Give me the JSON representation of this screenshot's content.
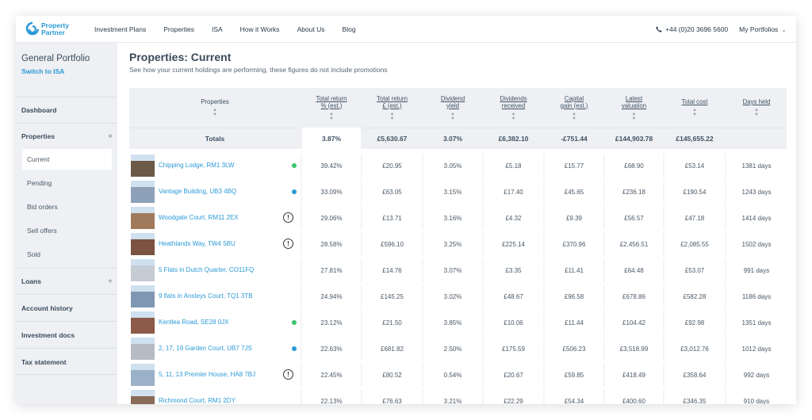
{
  "brand": {
    "line1": "Property",
    "line2": "Partner",
    "color": "#2c9ad6"
  },
  "nav": {
    "items": [
      "Investment Plans",
      "Properties",
      "ISA",
      "How it Works",
      "About Us",
      "Blog"
    ],
    "phone": "+44 (0)20 3696 5600",
    "portfolios": "My Portfolios"
  },
  "sidebar": {
    "title": "General Portfolio",
    "switch": "Switch to ISA",
    "dashboard": "Dashboard",
    "properties": "Properties",
    "properties_toggle": "×",
    "sub": [
      "Current",
      "Pending",
      "Bid orders",
      "Sell offers",
      "Sold"
    ],
    "loans": "Loans",
    "loans_toggle": "+",
    "account_history": "Account history",
    "investment_docs": "Investment docs",
    "tax_statement": "Tax statement"
  },
  "page": {
    "title": "Properties: Current",
    "subtitle": "See how your current holdings are performing, these figures do not include promotions"
  },
  "table": {
    "headers": [
      {
        "l1": "Properties",
        "l2": "",
        "u": false
      },
      {
        "l1": "Total return",
        "l2": "% (est.)",
        "u": true
      },
      {
        "l1": "Total return",
        "l2": "£ (est.)",
        "u": true
      },
      {
        "l1": "Dividend",
        "l2": "yield",
        "u": true
      },
      {
        "l1": "Dividends",
        "l2": "received",
        "u": true
      },
      {
        "l1": "Capital",
        "l2": "gain (est.)",
        "u": true
      },
      {
        "l1": "Latest",
        "l2": "valuation",
        "u": true
      },
      {
        "l1": "Total cost",
        "l2": "",
        "u": true
      },
      {
        "l1": "Days held",
        "l2": "",
        "u": true
      }
    ],
    "sort_glyph": "▲\n▼",
    "totals": [
      "Totals",
      "3.87%",
      "£5,630.67",
      "3.07%",
      "£6,382.10",
      "-£751.44",
      "£144,903.78",
      "£145,655.22",
      ""
    ],
    "rows": [
      {
        "name": "Chipping Lodge, RM1 3LW",
        "status": "green",
        "vals": [
          "39.42%",
          "£20.95",
          "3.05%",
          "£5.18",
          "£15.77",
          "£68.90",
          "£53.14",
          "1381 days"
        ]
      },
      {
        "name": "Vantage Building, UB3 4BQ",
        "status": "blue",
        "vals": [
          "33.09%",
          "£63.05",
          "3.15%",
          "£17.40",
          "£45.65",
          "£236.18",
          "£190.54",
          "1243 days"
        ]
      },
      {
        "name": "Woodgate Court, RM11 2EX",
        "status": "warn",
        "vals": [
          "29.06%",
          "£13.71",
          "3.16%",
          "£4.32",
          "£9.39",
          "£56.57",
          "£47.18",
          "1414 days"
        ]
      },
      {
        "name": "Heathlands Way, TW4 5BU",
        "status": "warn",
        "vals": [
          "28.58%",
          "£596.10",
          "3.25%",
          "£225.14",
          "£370.96",
          "£2,456.51",
          "£2,085.55",
          "1502 days"
        ]
      },
      {
        "name": "5 Flats in Dutch Quarter, CO11FQ",
        "status": "",
        "vals": [
          "27.81%",
          "£14.76",
          "3.07%",
          "£3.35",
          "£11.41",
          "£64.48",
          "£53.07",
          "991 days"
        ]
      },
      {
        "name": "9 flats in Ansteys Court, TQ1 3TB",
        "status": "",
        "vals": [
          "24.94%",
          "£145.25",
          "3.02%",
          "£48.67",
          "£96.58",
          "£678.86",
          "£582.28",
          "1186 days"
        ]
      },
      {
        "name": "Kentlea Road, SE28 0JX",
        "status": "green",
        "vals": [
          "23.12%",
          "£21.50",
          "3.85%",
          "£10.06",
          "£11.44",
          "£104.42",
          "£92.98",
          "1351 days"
        ]
      },
      {
        "name": "2, 17, 19 Garden Court, UB7 7JS",
        "status": "blue",
        "vals": [
          "22.63%",
          "£681.82",
          "2.50%",
          "£175.59",
          "£506.23",
          "£3,518.99",
          "£3,012.76",
          "1012 days"
        ]
      },
      {
        "name": "5, 11, 13 Premier House, HA8 7BJ",
        "status": "warn",
        "vals": [
          "22.45%",
          "£80.52",
          "0.54%",
          "£20.67",
          "£59.85",
          "£418.49",
          "£358.64",
          "992 days"
        ]
      },
      {
        "name": "Richmond Court, RM1 2DY",
        "status": "",
        "vals": [
          "22.13%",
          "£76.63",
          "3.21%",
          "£22.29",
          "£54.34",
          "£400.60",
          "£346.35",
          "910 days"
        ]
      }
    ],
    "status_colors": {
      "green": "#3cc26b",
      "blue": "#2c9ad6"
    },
    "warn_glyph": "!"
  }
}
